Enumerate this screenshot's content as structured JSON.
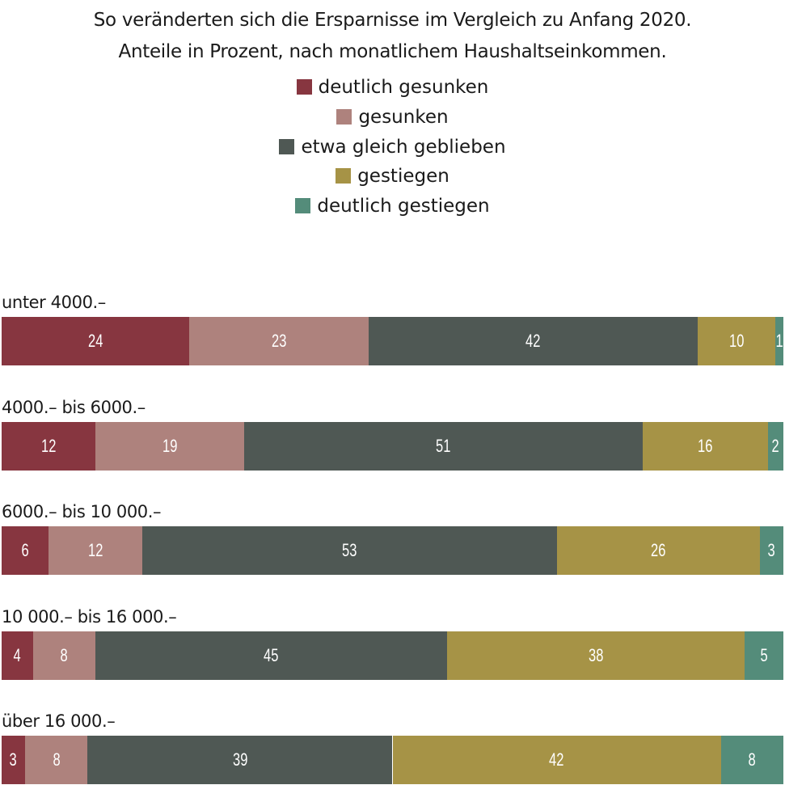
{
  "chart_data": {
    "type": "bar",
    "orientation": "horizontal-stacked-100",
    "subtitle": [
      "So veränderten sich die Ersparnisse im Vergleich zu Anfang 2020.",
      "Anteile in Prozent, nach monatlichem Haushaltseinkommen."
    ],
    "categories": [
      "unter 4000.–",
      "4000.– bis 6000.–",
      "6000.– bis 10 000.–",
      "10 000.– bis 16 000.–",
      "über 16 000.–"
    ],
    "series": [
      {
        "name": "deutlich gesunken",
        "color": "#873640",
        "values": [
          24,
          12,
          6,
          4,
          3
        ]
      },
      {
        "name": "gesunken",
        "color": "#ae827d",
        "values": [
          23,
          19,
          12,
          8,
          8
        ]
      },
      {
        "name": "etwa gleich geblieben",
        "color": "#4f5854",
        "values": [
          42,
          51,
          53,
          45,
          39
        ]
      },
      {
        "name": "gestiegen",
        "color": "#a69346",
        "values": [
          10,
          16,
          26,
          38,
          42
        ]
      },
      {
        "name": "deutlich gestiegen",
        "color": "#548c7a",
        "values": [
          1,
          2,
          3,
          5,
          8
        ]
      }
    ],
    "xlim": [
      0,
      100
    ],
    "legend": "top-center",
    "grid": false
  }
}
